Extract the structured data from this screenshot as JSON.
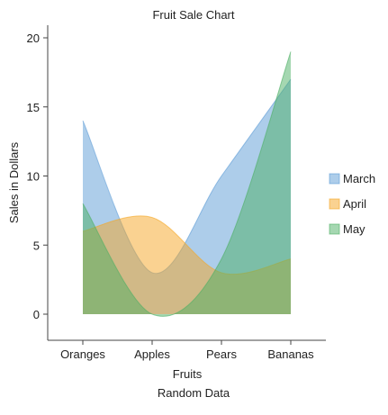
{
  "chart_data": {
    "type": "area",
    "title": "Fruit Sale Chart",
    "xlabel": "Fruits",
    "ylabel": "Sales in Dollars",
    "footer": "Random Data",
    "categories": [
      "Oranges",
      "Apples",
      "Pears",
      "Bananas"
    ],
    "ylim": [
      0,
      20
    ],
    "yticks": [
      0,
      5,
      10,
      15,
      20
    ],
    "grid": false,
    "legend_position": "right",
    "series": [
      {
        "name": "March",
        "values": [
          14,
          3,
          10,
          17
        ],
        "color": "#5b9bd5"
      },
      {
        "name": "April",
        "values": [
          6,
          7,
          3,
          4
        ],
        "color": "#f5a623"
      },
      {
        "name": "May",
        "values": [
          8,
          0,
          4,
          19
        ],
        "color": "#4caf64"
      }
    ]
  }
}
